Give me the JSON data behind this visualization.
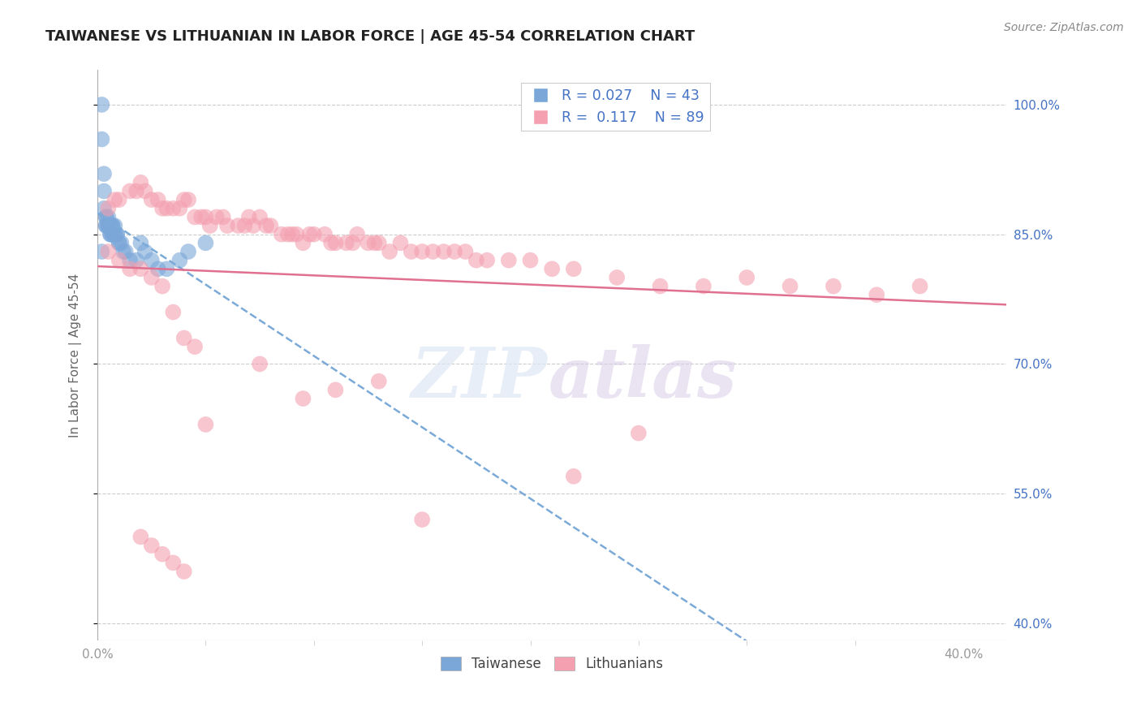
{
  "title": "TAIWANESE VS LITHUANIAN IN LABOR FORCE | AGE 45-54 CORRELATION CHART",
  "source": "Source: ZipAtlas.com",
  "ylabel": "In Labor Force | Age 45-54",
  "xlim": [
    0.0,
    0.42
  ],
  "ylim": [
    0.38,
    1.04
  ],
  "yticks": [
    0.4,
    0.55,
    0.7,
    0.85,
    1.0
  ],
  "xtick_labels": [
    "0.0%",
    "40.0%"
  ],
  "xtick_positions": [
    0.0,
    0.4
  ],
  "background_color": "#ffffff",
  "grid_color": "#cccccc",
  "title_color": "#222222",
  "legend_R_taiwanese": "0.027",
  "legend_N_taiwanese": "43",
  "legend_R_lithuanian": "0.117",
  "legend_N_lithuanian": "89",
  "taiwanese_color": "#7ba7d8",
  "lithuanian_color": "#f4a0b0",
  "trend_taiwanese_color": "#7baad8",
  "trend_lithuanian_color": "#e07090",
  "taiwanese_x": [
    0.002,
    0.002,
    0.003,
    0.003,
    0.003,
    0.004,
    0.004,
    0.004,
    0.004,
    0.005,
    0.005,
    0.005,
    0.005,
    0.006,
    0.006,
    0.006,
    0.006,
    0.006,
    0.007,
    0.007,
    0.007,
    0.007,
    0.008,
    0.008,
    0.008,
    0.009,
    0.009,
    0.01,
    0.01,
    0.011,
    0.012,
    0.013,
    0.015,
    0.018,
    0.02,
    0.022,
    0.025,
    0.028,
    0.032,
    0.038,
    0.042,
    0.05,
    0.002
  ],
  "taiwanese_y": [
    1.0,
    0.96,
    0.92,
    0.9,
    0.88,
    0.87,
    0.87,
    0.86,
    0.86,
    0.87,
    0.86,
    0.86,
    0.86,
    0.86,
    0.86,
    0.86,
    0.85,
    0.85,
    0.86,
    0.86,
    0.85,
    0.85,
    0.86,
    0.85,
    0.85,
    0.85,
    0.85,
    0.84,
    0.84,
    0.84,
    0.83,
    0.83,
    0.82,
    0.82,
    0.84,
    0.83,
    0.82,
    0.81,
    0.81,
    0.82,
    0.83,
    0.84,
    0.83
  ],
  "lithuanian_x": [
    0.005,
    0.008,
    0.01,
    0.015,
    0.018,
    0.02,
    0.022,
    0.025,
    0.028,
    0.03,
    0.032,
    0.035,
    0.038,
    0.04,
    0.042,
    0.045,
    0.048,
    0.05,
    0.052,
    0.055,
    0.058,
    0.06,
    0.065,
    0.068,
    0.07,
    0.072,
    0.075,
    0.078,
    0.08,
    0.085,
    0.088,
    0.09,
    0.092,
    0.095,
    0.098,
    0.1,
    0.105,
    0.108,
    0.11,
    0.115,
    0.118,
    0.12,
    0.125,
    0.128,
    0.13,
    0.135,
    0.14,
    0.145,
    0.15,
    0.155,
    0.16,
    0.165,
    0.17,
    0.175,
    0.18,
    0.19,
    0.2,
    0.21,
    0.22,
    0.24,
    0.26,
    0.28,
    0.3,
    0.32,
    0.34,
    0.36,
    0.38,
    0.05,
    0.075,
    0.095,
    0.11,
    0.13,
    0.15,
    0.22,
    0.25,
    0.005,
    0.01,
    0.015,
    0.02,
    0.025,
    0.03,
    0.035,
    0.04,
    0.045,
    0.02,
    0.025,
    0.03,
    0.035,
    0.04
  ],
  "lithuanian_y": [
    0.88,
    0.89,
    0.89,
    0.9,
    0.9,
    0.91,
    0.9,
    0.89,
    0.89,
    0.88,
    0.88,
    0.88,
    0.88,
    0.89,
    0.89,
    0.87,
    0.87,
    0.87,
    0.86,
    0.87,
    0.87,
    0.86,
    0.86,
    0.86,
    0.87,
    0.86,
    0.87,
    0.86,
    0.86,
    0.85,
    0.85,
    0.85,
    0.85,
    0.84,
    0.85,
    0.85,
    0.85,
    0.84,
    0.84,
    0.84,
    0.84,
    0.85,
    0.84,
    0.84,
    0.84,
    0.83,
    0.84,
    0.83,
    0.83,
    0.83,
    0.83,
    0.83,
    0.83,
    0.82,
    0.82,
    0.82,
    0.82,
    0.81,
    0.81,
    0.8,
    0.79,
    0.79,
    0.8,
    0.79,
    0.79,
    0.78,
    0.79,
    0.63,
    0.7,
    0.66,
    0.67,
    0.68,
    0.52,
    0.57,
    0.62,
    0.83,
    0.82,
    0.81,
    0.81,
    0.8,
    0.79,
    0.76,
    0.73,
    0.72,
    0.5,
    0.49,
    0.48,
    0.47,
    0.46
  ]
}
